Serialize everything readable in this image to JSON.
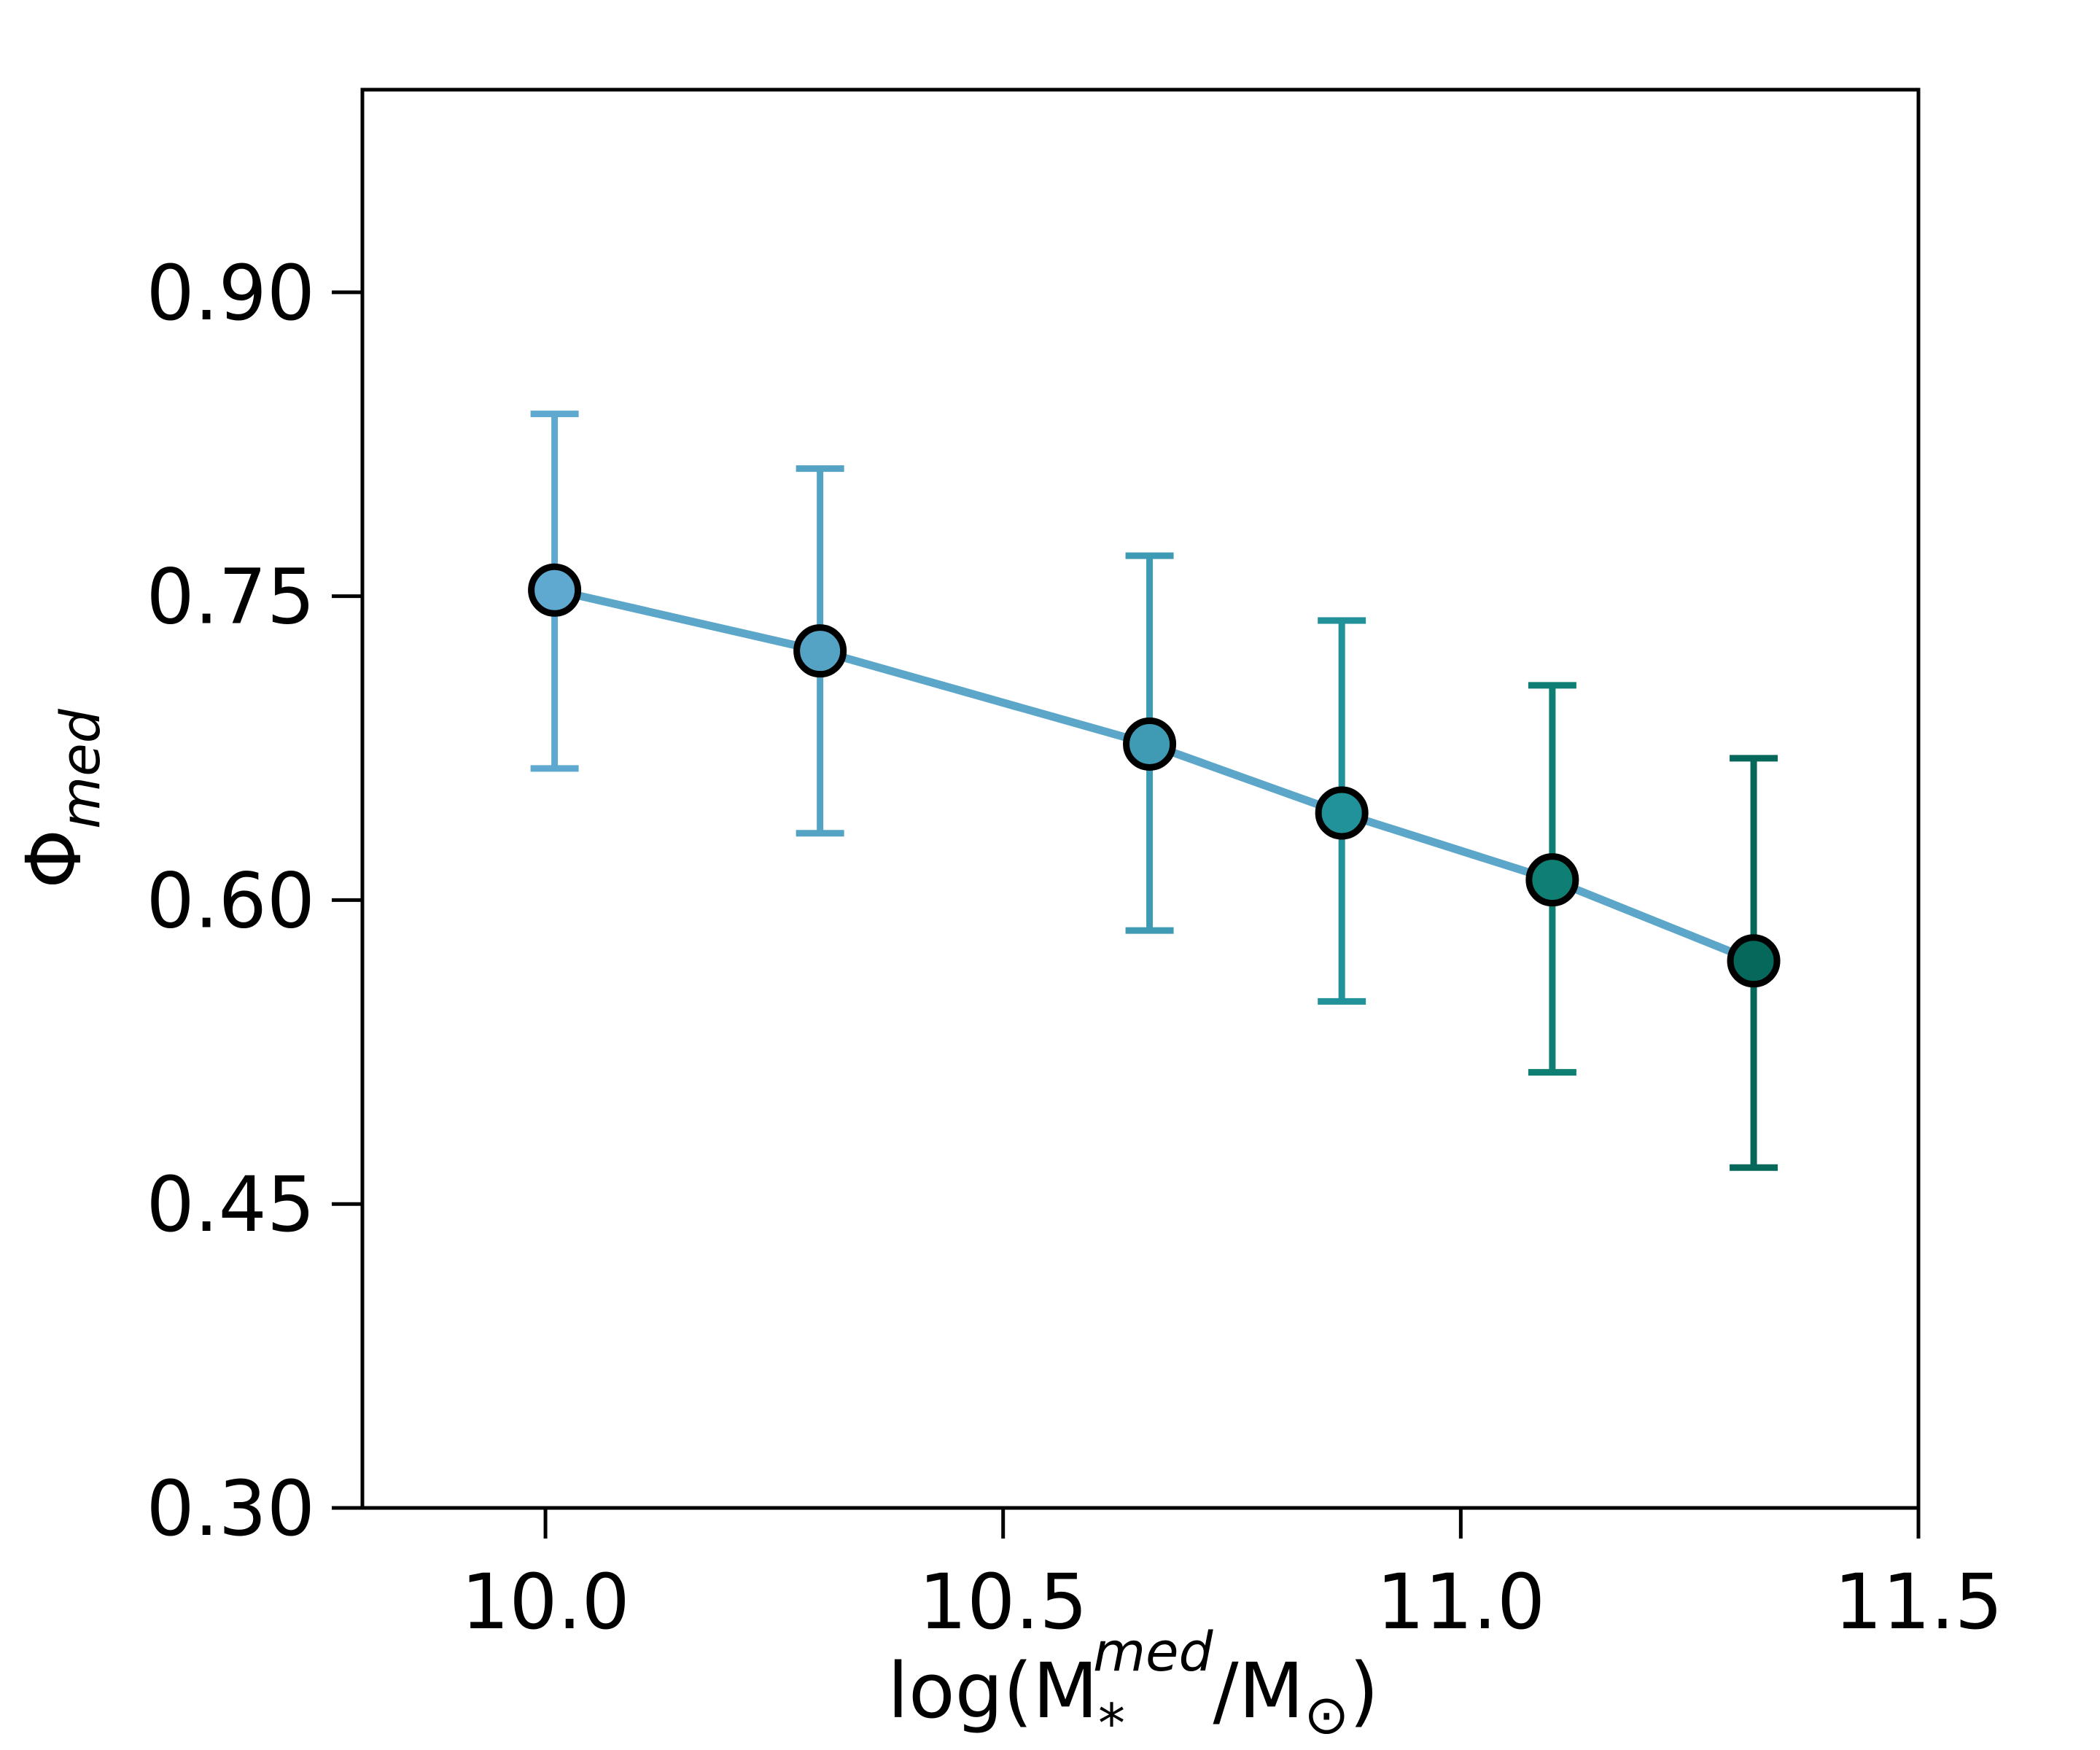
{
  "chart_data": {
    "type": "line",
    "title": "",
    "xlabel": {
      "base": "log(M",
      "subscript": "*",
      "superscript": "med",
      "tail": "/M",
      "tail_subscript": "⊙",
      "close": ")"
    },
    "ylabel": {
      "base": "Φ",
      "subscript": "med"
    },
    "xlim": [
      9.8,
      11.5
    ],
    "ylim": [
      0.3,
      1.0
    ],
    "xticks": [
      10.0,
      10.5,
      11.0,
      11.5
    ],
    "xtick_labels": [
      "10.0",
      "10.5",
      "11.0",
      "11.5"
    ],
    "yticks": [
      0.3,
      0.45,
      0.6,
      0.75,
      0.9
    ],
    "ytick_labels": [
      "0.30",
      "0.45",
      "0.60",
      "0.75",
      "0.90"
    ],
    "grid": false,
    "line_color": "#5BA6C9",
    "series": [
      {
        "name": "Phi_med",
        "x": [
          10.01,
          10.3,
          10.66,
          10.87,
          11.1,
          11.32
        ],
        "y": [
          0.753,
          0.723,
          0.677,
          0.643,
          0.61,
          0.57
        ],
        "y_err_low": [
          0.665,
          0.633,
          0.585,
          0.55,
          0.515,
          0.468
        ],
        "y_err_high": [
          0.84,
          0.813,
          0.77,
          0.738,
          0.706,
          0.67
        ],
        "colors": [
          "#5FA8CF",
          "#54A2C4",
          "#3F9BB4",
          "#21929A",
          "#0E7F72",
          "#05685A"
        ]
      }
    ]
  }
}
